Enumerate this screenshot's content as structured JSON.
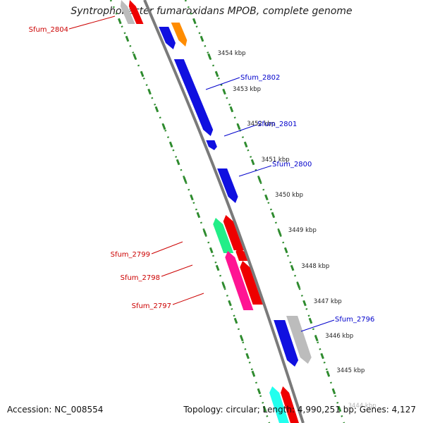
{
  "title": "Syntrophobacter fumaroxidans MPOB, complete genome",
  "footer": {
    "accession": "Accession: NC_008554",
    "summary": "Topology: circular; Length: 4,990,251 bp; Genes: 4,127"
  },
  "colors": {
    "backbone": "#7a7a7a",
    "ruler_dash": "#2e8b2e",
    "label_forward": "#0000cc",
    "label_reverse": "#cc0000",
    "gene_blue": "#1010e0",
    "gene_orange": "#ff8c00",
    "gene_gray": "#bcbcbc",
    "gene_red": "#ee0000",
    "gene_green": "#22ee88",
    "gene_pink": "#ff1493",
    "gene_cyan": "#22ffee"
  },
  "kbp_ticks": [
    "3454 kbp",
    "3453 kbp",
    "3452 kbp",
    "3451 kbp",
    "3450 kbp",
    "3449 kbp",
    "3448 kbp",
    "3447 kbp",
    "3446 kbp",
    "3445 kbp",
    "3444 kbp"
  ],
  "forward_labels": [
    "Sfum_2802",
    "Sfum_2801",
    "Sfum_2800",
    "Sfum_2796"
  ],
  "reverse_labels": [
    "Sfum_2804",
    "Sfum_2799",
    "Sfum_2798",
    "Sfum_2797"
  ],
  "genes": [
    {
      "strand": "forward",
      "color": "gene_blue"
    },
    {
      "strand": "forward",
      "color": "gene_orange"
    },
    {
      "strand": "forward",
      "color": "gene_blue"
    },
    {
      "strand": "forward",
      "color": "gene_blue"
    },
    {
      "strand": "forward",
      "color": "gene_blue"
    },
    {
      "strand": "forward",
      "color": "gene_blue"
    },
    {
      "strand": "forward",
      "color": "gene_gray"
    },
    {
      "strand": "reverse",
      "color": "gene_gray"
    },
    {
      "strand": "reverse",
      "color": "gene_red"
    },
    {
      "strand": "reverse",
      "color": "gene_green"
    },
    {
      "strand": "reverse",
      "color": "gene_red"
    },
    {
      "strand": "reverse",
      "color": "gene_red"
    },
    {
      "strand": "reverse",
      "color": "gene_pink"
    },
    {
      "strand": "reverse",
      "color": "gene_red"
    },
    {
      "strand": "reverse",
      "color": "gene_cyan"
    },
    {
      "strand": "reverse",
      "color": "gene_red"
    }
  ]
}
